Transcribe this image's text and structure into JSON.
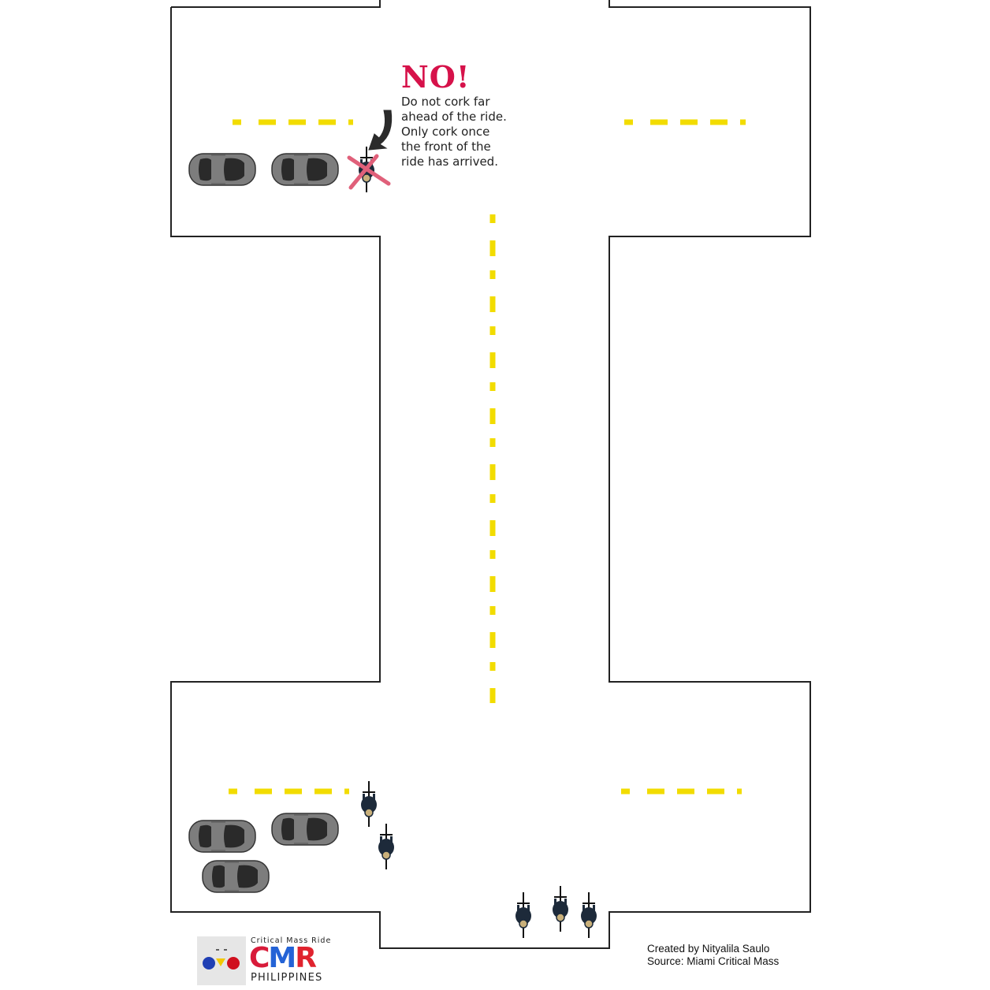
{
  "callout": {
    "title": "NO!",
    "lines": [
      "Do not cork far",
      "ahead of the ride.",
      "Only cork once",
      "the front of the",
      "ride has arrived."
    ]
  },
  "credits": {
    "created_by": "Created by Nityalila Saulo",
    "source": "Source: Miami Critical Mass"
  },
  "logo": {
    "kicker": "Critical Mass Ride",
    "word": [
      "C",
      "M",
      "R"
    ],
    "country": "PHILIPPINES"
  },
  "colors": {
    "road_outline": "#222222",
    "lane_marking": "#f2dc00",
    "warning_red": "#d6124a",
    "cross_mark": "#e0607a",
    "car_body": "#7d7d7d",
    "car_glass": "#2a2a2a",
    "cyclist": "#1d2a3a"
  },
  "icons": [
    "car-icon",
    "cyclist-icon",
    "arrow-icon",
    "cross-icon",
    "logo-badge-icon"
  ]
}
